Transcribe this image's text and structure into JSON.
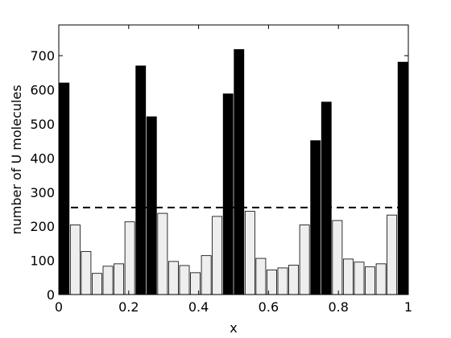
{
  "chart_data": {
    "type": "bar",
    "title": "",
    "xlabel": "x",
    "ylabel": "number of U molecules",
    "xlim": [
      0,
      1
    ],
    "ylim": [
      0,
      790
    ],
    "xticks": [
      0,
      0.2,
      0.4,
      0.6,
      0.8,
      1
    ],
    "xtick_labels": [
      "0",
      "0.2",
      "0.4",
      "0.6",
      "0.8",
      "1"
    ],
    "yticks": [
      0,
      100,
      200,
      300,
      400,
      500,
      600,
      700
    ],
    "ytick_labels": [
      "0",
      "100",
      "200",
      "300",
      "400",
      "500",
      "600",
      "700"
    ],
    "grid": false,
    "bar_width": 0.0278,
    "reference_line": {
      "value": 255,
      "style": "dashed"
    },
    "bars": [
      {
        "x": 0.0156,
        "value": 620,
        "fill": "#000000"
      },
      {
        "x": 0.0469,
        "value": 204,
        "fill": "#eeeeee"
      },
      {
        "x": 0.0781,
        "value": 126,
        "fill": "#eeeeee"
      },
      {
        "x": 0.1094,
        "value": 62,
        "fill": "#eeeeee"
      },
      {
        "x": 0.1406,
        "value": 83,
        "fill": "#eeeeee"
      },
      {
        "x": 0.1719,
        "value": 90,
        "fill": "#eeeeee"
      },
      {
        "x": 0.2031,
        "value": 213,
        "fill": "#eeeeee"
      },
      {
        "x": 0.2344,
        "value": 670,
        "fill": "#000000"
      },
      {
        "x": 0.2656,
        "value": 521,
        "fill": "#000000"
      },
      {
        "x": 0.2969,
        "value": 238,
        "fill": "#eeeeee"
      },
      {
        "x": 0.3281,
        "value": 97,
        "fill": "#eeeeee"
      },
      {
        "x": 0.3594,
        "value": 85,
        "fill": "#eeeeee"
      },
      {
        "x": 0.3906,
        "value": 64,
        "fill": "#eeeeee"
      },
      {
        "x": 0.4219,
        "value": 114,
        "fill": "#eeeeee"
      },
      {
        "x": 0.4531,
        "value": 229,
        "fill": "#eeeeee"
      },
      {
        "x": 0.4844,
        "value": 588,
        "fill": "#000000"
      },
      {
        "x": 0.5156,
        "value": 718,
        "fill": "#000000"
      },
      {
        "x": 0.5469,
        "value": 244,
        "fill": "#eeeeee"
      },
      {
        "x": 0.5781,
        "value": 106,
        "fill": "#eeeeee"
      },
      {
        "x": 0.6094,
        "value": 72,
        "fill": "#eeeeee"
      },
      {
        "x": 0.6406,
        "value": 78,
        "fill": "#eeeeee"
      },
      {
        "x": 0.6719,
        "value": 86,
        "fill": "#eeeeee"
      },
      {
        "x": 0.7031,
        "value": 204,
        "fill": "#eeeeee"
      },
      {
        "x": 0.7344,
        "value": 451,
        "fill": "#000000"
      },
      {
        "x": 0.7656,
        "value": 564,
        "fill": "#000000"
      },
      {
        "x": 0.7969,
        "value": 217,
        "fill": "#eeeeee"
      },
      {
        "x": 0.8281,
        "value": 104,
        "fill": "#eeeeee"
      },
      {
        "x": 0.8594,
        "value": 95,
        "fill": "#eeeeee"
      },
      {
        "x": 0.8906,
        "value": 81,
        "fill": "#eeeeee"
      },
      {
        "x": 0.9219,
        "value": 90,
        "fill": "#eeeeee"
      },
      {
        "x": 0.9531,
        "value": 233,
        "fill": "#eeeeee"
      },
      {
        "x": 0.9844,
        "value": 681,
        "fill": "#000000"
      }
    ]
  }
}
